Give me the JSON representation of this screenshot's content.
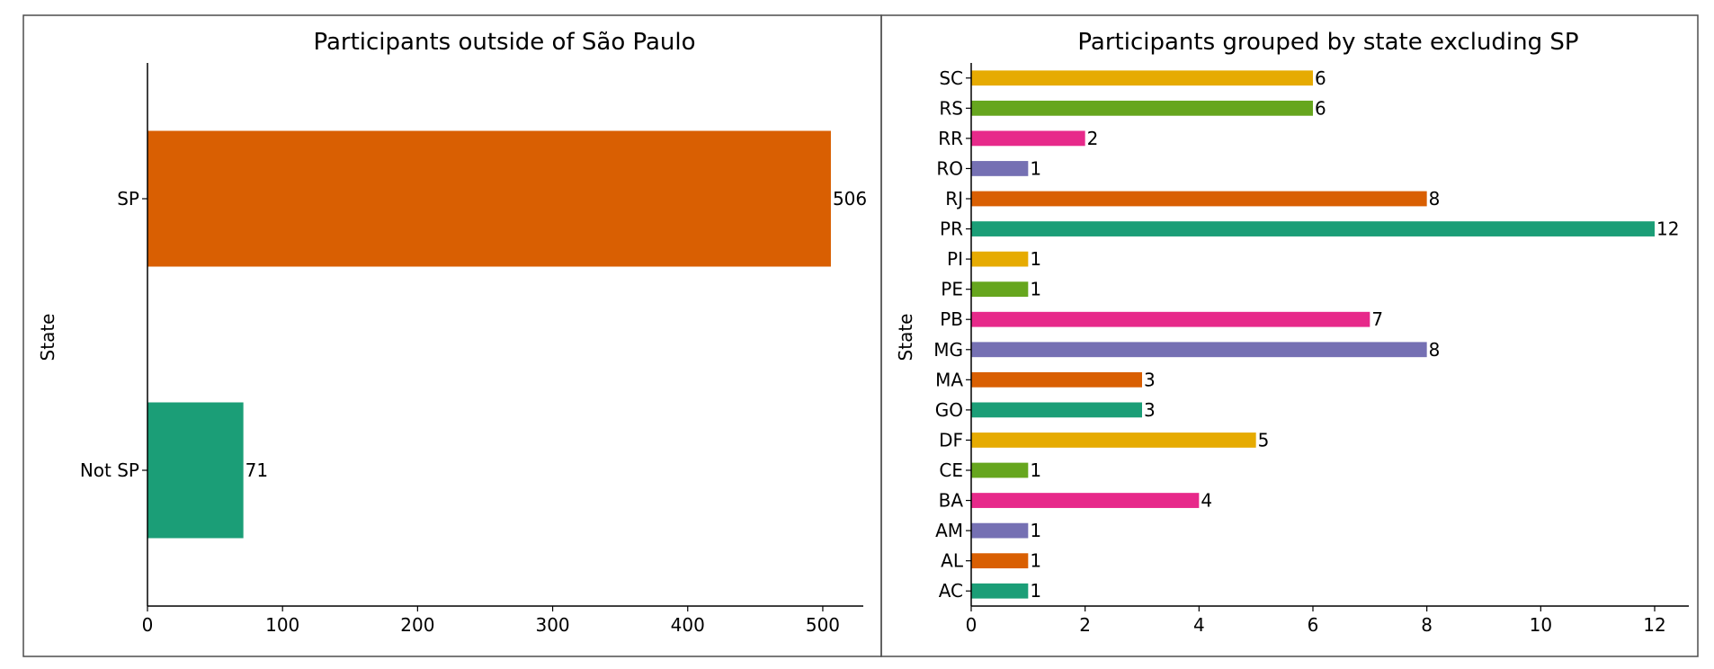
{
  "chart_data": [
    {
      "type": "bar",
      "orientation": "horizontal",
      "title": "Participants outside of São Paulo",
      "xlabel": "",
      "ylabel": "State",
      "categories": [
        "Not SP",
        "SP"
      ],
      "values": [
        71,
        506
      ],
      "colors": [
        "#1b9e77",
        "#d95f02"
      ],
      "xlim": [
        0,
        530
      ],
      "xticks": [
        0,
        100,
        200,
        300,
        400,
        500
      ],
      "data_labels": true,
      "grid": false
    },
    {
      "type": "bar",
      "orientation": "horizontal",
      "title": "Participants grouped by state excluding SP",
      "xlabel": "",
      "ylabel": "State",
      "categories": [
        "AC",
        "AL",
        "AM",
        "BA",
        "CE",
        "DF",
        "GO",
        "MA",
        "MG",
        "PB",
        "PE",
        "PI",
        "PR",
        "RJ",
        "RO",
        "RR",
        "RS",
        "SC"
      ],
      "values": [
        1,
        1,
        1,
        4,
        1,
        5,
        3,
        3,
        8,
        7,
        1,
        1,
        12,
        8,
        1,
        2,
        6,
        6
      ],
      "colors": [
        "#1b9e77",
        "#d95f02",
        "#7570b3",
        "#e7298a",
        "#66a61e",
        "#e6ab02"
      ],
      "xlim": [
        0,
        12.6
      ],
      "xticks": [
        0,
        2,
        4,
        6,
        8,
        10,
        12
      ],
      "data_labels": true,
      "grid": false
    }
  ]
}
